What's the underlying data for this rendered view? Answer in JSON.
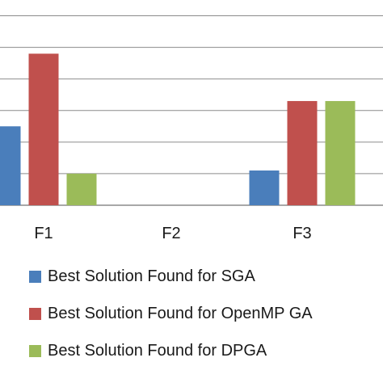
{
  "chart_data": {
    "type": "bar",
    "categories": [
      "F1",
      "F2",
      "F3"
    ],
    "series": [
      {
        "name": "Best Solution Found for SGA",
        "color": "#4a7ebb",
        "values": [
          2.5,
          0,
          1.1
        ]
      },
      {
        "name": "Best Solution Found for OpenMP GA",
        "color": "#c0504d",
        "values": [
          4.8,
          0,
          3.3
        ]
      },
      {
        "name": "Best Solution Found for DPGA",
        "color": "#9bbb59",
        "values": [
          1.0,
          0,
          3.3
        ]
      }
    ],
    "ylim": [
      0,
      6.5
    ],
    "grid": true,
    "legend_position": "bottom"
  }
}
